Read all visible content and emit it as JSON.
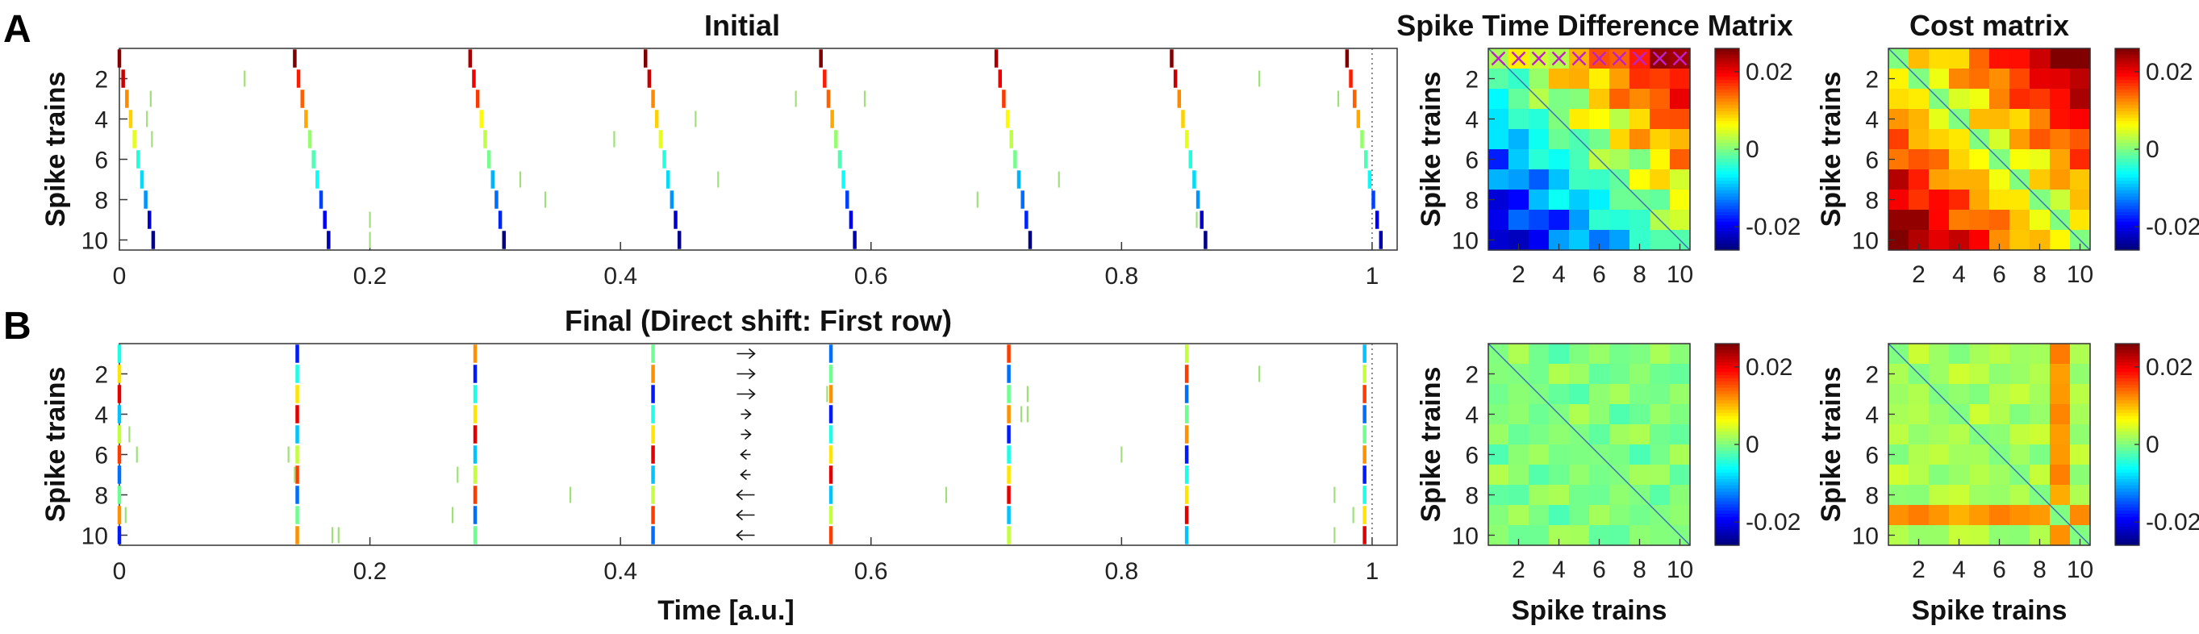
{
  "panel_labels": [
    "A",
    "B"
  ],
  "chart_data": [
    {
      "id": "raster-initial",
      "type": "scatter",
      "title": "Initial",
      "xlabel": "",
      "ylabel": "Spike trains",
      "xlim": [
        0,
        1.02
      ],
      "ylim": [
        10.5,
        0.5
      ],
      "xticks": [
        "0",
        "0.2",
        "0.4",
        "0.6",
        "0.8",
        "1"
      ],
      "yticks": [
        "2",
        "4",
        "6",
        "8",
        "10"
      ],
      "grid": false,
      "colormap": "jet",
      "color_range": [
        -0.025,
        0.025
      ],
      "event_times": [
        0,
        0.14,
        0.28,
        0.42,
        0.56,
        0.7,
        0.84,
        0.98
      ],
      "event_delays": [
        [
          0.975,
          0.019,
          0.0145
        ],
        [
          0.0,
          0.0,
          0.017
        ],
        [
          0.0,
          0.0,
          0.0
        ]
      ],
      "initial_delays": [
        -0.0,
        0.003,
        0.006,
        0.009,
        0.012,
        0.015,
        0.018,
        0.021,
        0.024,
        0.027
      ],
      "noise_spikes": [
        {
          "train": 3,
          "t": 0.025
        },
        {
          "train": 4,
          "t": 0.022
        },
        {
          "train": 5,
          "t": 0.026
        },
        {
          "train": 4,
          "t": 0.46
        },
        {
          "train": 3,
          "t": 0.54
        },
        {
          "train": 7,
          "t": 0.32
        },
        {
          "train": 7,
          "t": 0.478
        },
        {
          "train": 9,
          "t": 0.2
        },
        {
          "train": 10,
          "t": 0.2
        },
        {
          "train": 2,
          "t": 0.91
        },
        {
          "train": 3,
          "t": 0.595
        },
        {
          "train": 3,
          "t": 0.973
        },
        {
          "train": 5,
          "t": 0.395
        },
        {
          "train": 7,
          "t": 0.75
        },
        {
          "train": 8,
          "t": 0.34
        },
        {
          "train": 8,
          "t": 0.685
        },
        {
          "train": 9,
          "t": 0.86
        },
        {
          "train": 2,
          "t": 0.1
        }
      ],
      "vlines": [
        0,
        1
      ]
    },
    {
      "id": "raster-final",
      "type": "scatter",
      "title": "Final   (Direct shift: First row)",
      "xlabel": "Time   [a.u.]",
      "ylabel": "Spike trains",
      "xlim": [
        0,
        1.02
      ],
      "ylim": [
        10.5,
        0.5
      ],
      "xticks": [
        "0",
        "0.2",
        "0.4",
        "0.6",
        "0.8",
        "1"
      ],
      "yticks": [
        "2",
        "4",
        "6",
        "8",
        "10"
      ],
      "grid": false,
      "colormap": "jet",
      "color_range": [
        -0.025,
        0.025
      ],
      "event_times": [
        0,
        0.142,
        0.284,
        0.426,
        0.568,
        0.71,
        0.852,
        0.994
      ],
      "noise_spikes": [
        {
          "train": 2,
          "t": 0.91
        },
        {
          "train": 3,
          "t": 0.565
        },
        {
          "train": 3,
          "t": 0.725
        },
        {
          "train": 4,
          "t": 0.725
        },
        {
          "train": 4,
          "t": 0.72
        },
        {
          "train": 5,
          "t": 0.008
        },
        {
          "train": 6,
          "t": 0.014
        },
        {
          "train": 6,
          "t": 0.135
        },
        {
          "train": 6,
          "t": 0.8
        },
        {
          "train": 7,
          "t": 0.27
        },
        {
          "train": 7,
          "t": 0.14
        },
        {
          "train": 8,
          "t": 0.36
        },
        {
          "train": 8,
          "t": 0.66
        },
        {
          "train": 9,
          "t": 0.005
        },
        {
          "train": 9,
          "t": 0.266
        },
        {
          "train": 10,
          "t": 0.17
        },
        {
          "train": 10,
          "t": 0.175
        },
        {
          "train": 9,
          "t": 0.985
        },
        {
          "train": 10,
          "t": 0.97
        },
        {
          "train": 8,
          "t": 0.97
        }
      ],
      "arrows_x": 0.5,
      "vlines": [
        0,
        1
      ]
    },
    {
      "id": "std-matrix-initial",
      "type": "heatmap",
      "title": "Spike Time Difference Matrix",
      "xlabel": "",
      "ylabel": "Spike trains",
      "xticks": [
        "2",
        "4",
        "6",
        "8",
        "10"
      ],
      "yticks": [
        "2",
        "4",
        "6",
        "8",
        "10"
      ],
      "colorbar_ticks": [
        "0.02",
        "0",
        "-0.02"
      ],
      "colorbar_values": [
        0.02,
        0,
        -0.02
      ],
      "clim": [
        -0.026,
        0.026
      ],
      "marker_row": 1,
      "marker": "x",
      "marker_color": "#c020c8",
      "size": 10
    },
    {
      "id": "cost-matrix-initial",
      "type": "heatmap",
      "title": "Cost matrix",
      "xlabel": "",
      "ylabel": "Spike trains",
      "xticks": [
        "2",
        "4",
        "6",
        "8",
        "10"
      ],
      "yticks": [
        "2",
        "4",
        "6",
        "8",
        "10"
      ],
      "colorbar_ticks": [
        "0.02",
        "0",
        "-0.02"
      ],
      "colorbar_values": [
        0.02,
        0,
        -0.02
      ],
      "clim": [
        -0.026,
        0.026
      ],
      "size": 10
    },
    {
      "id": "std-matrix-final",
      "type": "heatmap",
      "title": "",
      "xlabel": "Spike trains",
      "ylabel": "Spike trains",
      "xticks": [
        "2",
        "4",
        "6",
        "8",
        "10"
      ],
      "yticks": [
        "2",
        "4",
        "6",
        "8",
        "10"
      ],
      "colorbar_ticks": [
        "0.02",
        "0",
        "-0.02"
      ],
      "colorbar_values": [
        0.02,
        0,
        -0.02
      ],
      "clim": [
        -0.026,
        0.026
      ],
      "size": 10
    },
    {
      "id": "cost-matrix-final",
      "type": "heatmap",
      "title": "",
      "xlabel": "Spike trains",
      "ylabel": "Spike trains",
      "xticks": [
        "2",
        "4",
        "6",
        "8",
        "10"
      ],
      "yticks": [
        "2",
        "4",
        "6",
        "8",
        "10"
      ],
      "colorbar_ticks": [
        "0.02",
        "0",
        "-0.02"
      ],
      "colorbar_values": [
        0.02,
        0,
        -0.02
      ],
      "clim": [
        -0.026,
        0.026
      ],
      "size": 10
    }
  ]
}
